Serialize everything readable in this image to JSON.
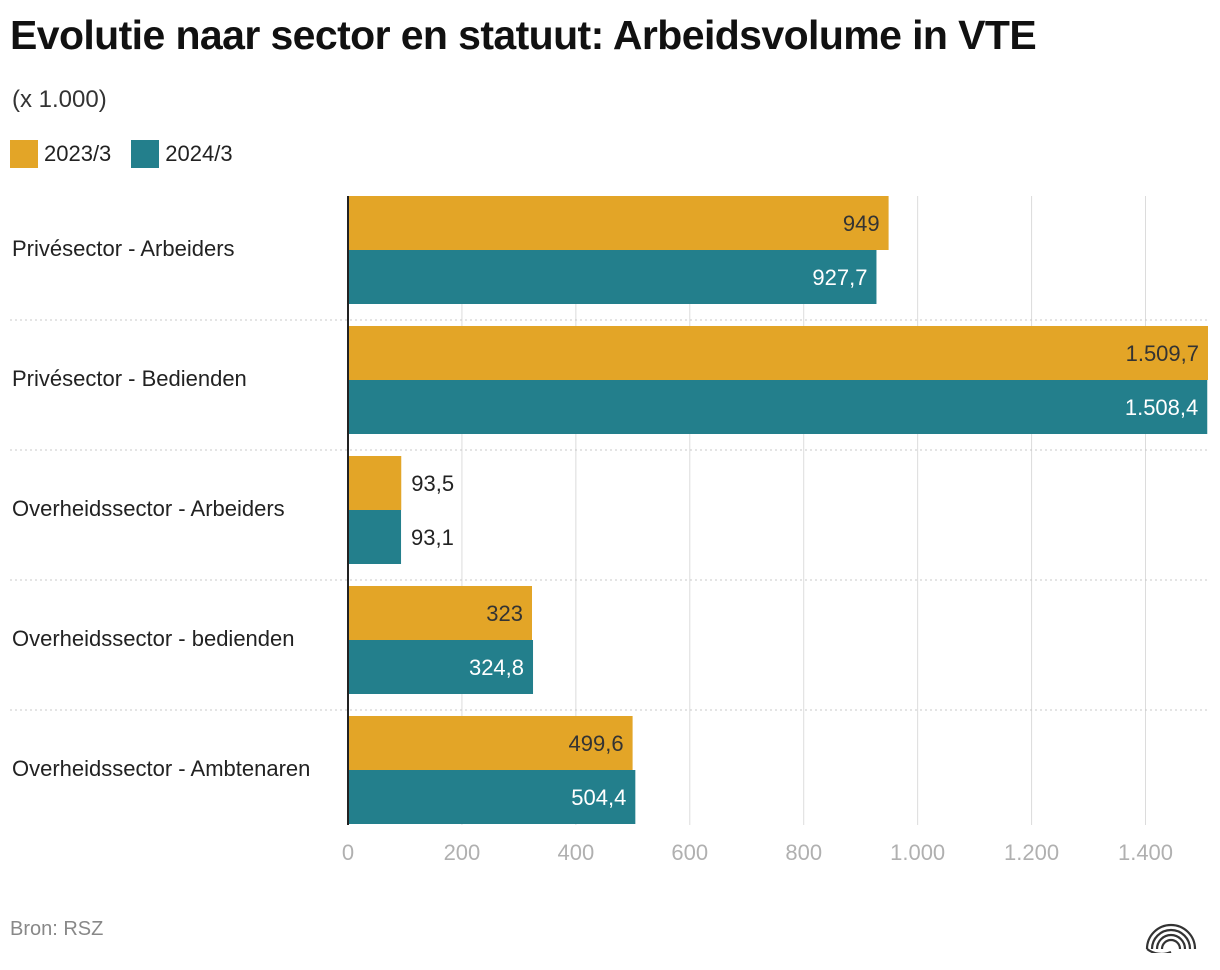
{
  "title": "Evolutie naar sector en statuut: Arbeidsvolume in VTE",
  "subtitle": "(x 1.000)",
  "source": "Bron: RSZ",
  "chart_data": {
    "type": "bar",
    "orientation": "horizontal",
    "categories": [
      "Privésector - Arbeiders",
      "Privésector - Bedienden",
      "Overheidssector - Arbeiders",
      "Overheidssector - bedienden",
      "Overheidssector - Ambtenaren"
    ],
    "series": [
      {
        "name": "2023/3",
        "color": "#e3a527",
        "values": [
          949,
          1509.7,
          93.5,
          323,
          499.6
        ],
        "labels": [
          "949",
          "1.509,7",
          "93,5",
          "323",
          "499,6"
        ]
      },
      {
        "name": "2024/3",
        "color": "#237f8c",
        "values": [
          927.7,
          1508.4,
          93.1,
          324.8,
          504.4
        ],
        "labels": [
          "927,7",
          "1.508,4",
          "93,1",
          "324,8",
          "504,4"
        ]
      }
    ],
    "xlim": [
      0,
      1509.7
    ],
    "xticks": [
      0,
      200,
      400,
      600,
      800,
      1000,
      1200,
      1400
    ],
    "xtick_labels": [
      "0",
      "200",
      "400",
      "600",
      "800",
      "1.000",
      "1.200",
      "1.400"
    ],
    "grid": true,
    "legend_position": "top-left"
  }
}
